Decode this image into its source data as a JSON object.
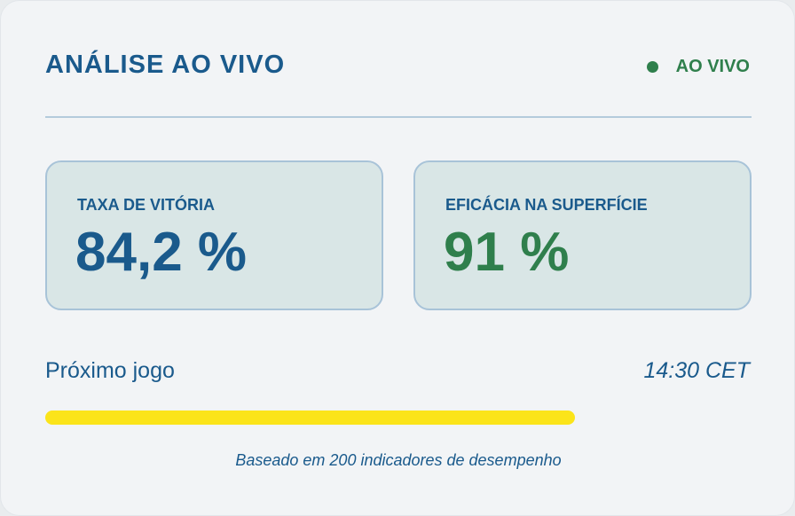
{
  "header": {
    "title": "ANÁLISE AO VIVO",
    "status": "AO VIVO"
  },
  "metrics": [
    {
      "label": "TAXA DE VITÓRIA",
      "value": "84,2 %"
    },
    {
      "label": "EFICÁCIA NA SUPERFÍCIE",
      "value": "91 %"
    }
  ],
  "next_game": {
    "label": "Próximo jogo",
    "time": "14:30 CET",
    "progress_percent": 75
  },
  "footnote": "Baseado em 200 indicadores de desempenho"
}
